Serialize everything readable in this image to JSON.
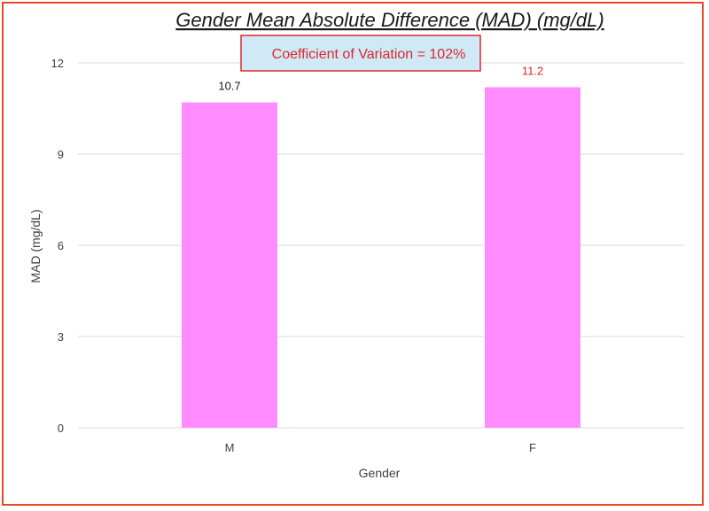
{
  "chart_data": {
    "type": "bar",
    "title": "Gender Mean Absolute Difference (MAD) (mg/dL)",
    "xlabel": "Gender",
    "ylabel": "MAD (mg/dL)",
    "categories": [
      "M",
      "F"
    ],
    "values": [
      10.7,
      11.2
    ],
    "data_labels": [
      "10.7",
      "11.2"
    ],
    "ylim": [
      0,
      12
    ],
    "yticks": [
      0,
      3,
      6,
      9,
      12
    ],
    "grid": true,
    "legend": "none",
    "annotation": "Coefficient of Variation = 102%",
    "colors": {
      "bar": "#ff8cff",
      "gridline": "#d9d9d9",
      "frame_border": "#e8472a",
      "annotation_bg": "#cfe9f7",
      "annotation_border": "#e0262b",
      "annotation_text": "#e0262b",
      "label_M": "#1a1a1a",
      "label_F": "#e0262b"
    }
  }
}
